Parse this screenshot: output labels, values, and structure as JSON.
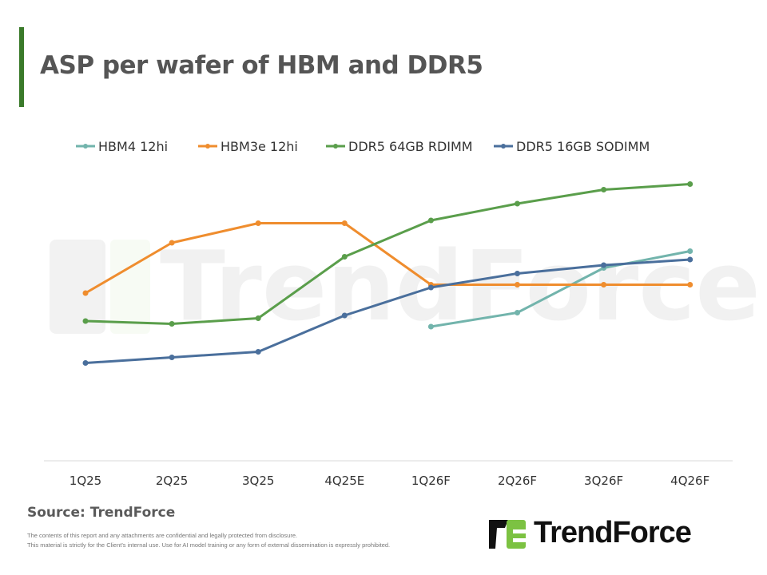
{
  "header": {
    "title": "ASP per wafer of HBM and DDR5"
  },
  "footer": {
    "source": "Source: TrendForce",
    "disclaimer_1": "The contents of this report and any attachments are confidential and legally protected from disclosure.",
    "disclaimer_2": "This material is strictly for the Client's internal use. Use for AI model training or any form of external dissemination is expressly prohibited.",
    "logo_text": "TrendForce"
  },
  "watermark": "TrendForce",
  "colors": {
    "accent": "#3a7a2a",
    "logo_green": "#7cc242"
  },
  "chart_data": {
    "type": "line",
    "title": "ASP per wafer of HBM and DDR5",
    "xlabel": "",
    "ylabel": "",
    "y_axis_shown": false,
    "ylim": [
      0,
      100
    ],
    "grid": false,
    "legend": "top",
    "categories": [
      "1Q25",
      "2Q25",
      "3Q25",
      "4Q25E",
      "1Q26F",
      "2Q26F",
      "3Q26F",
      "4Q26F"
    ],
    "series": [
      {
        "name": "HBM4 12hi",
        "color": "#72b4ac",
        "values": [
          null,
          null,
          null,
          null,
          48,
          53,
          69,
          75
        ]
      },
      {
        "name": "HBM3e 12hi",
        "color": "#ef8d2e",
        "values": [
          60,
          78,
          85,
          85,
          63,
          63,
          63,
          63
        ]
      },
      {
        "name": "DDR5 64GB RDIMM",
        "color": "#5a9e4b",
        "values": [
          50,
          49,
          51,
          73,
          86,
          92,
          97,
          99
        ]
      },
      {
        "name": "DDR5 16GB SODIMM",
        "color": "#4a6f9c",
        "values": [
          35,
          37,
          39,
          52,
          62,
          67,
          70,
          72
        ]
      }
    ]
  }
}
